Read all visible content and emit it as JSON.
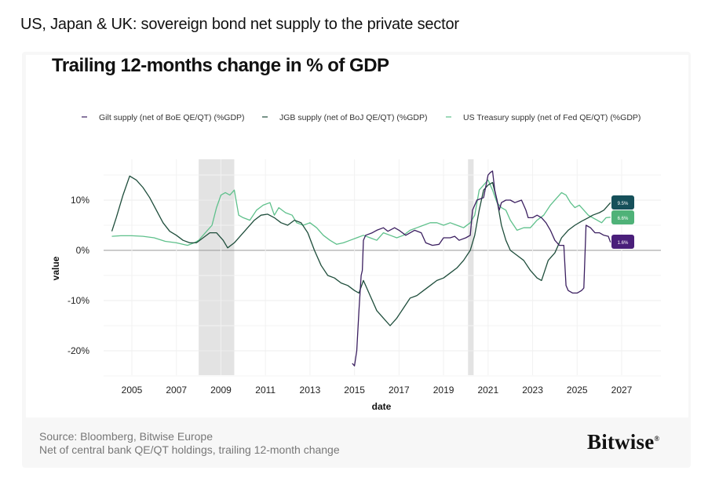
{
  "page_title": "US, Japan & UK: sovereign bond net supply to the private sector",
  "footer": {
    "source": "Source: Bloomberg, Bitwise Europe",
    "note": "Net of central bank QE/QT holdings, trailing 12-month change",
    "brand": "Bitwise",
    "brand_mark": "®"
  },
  "chart_data": {
    "type": "line",
    "title": "Trailing 12-months change in % of GDP",
    "xlabel": "date",
    "ylabel": "value",
    "xlim": [
      2004.0,
      2027.5
    ],
    "ylim": [
      -25,
      20
    ],
    "grid": true,
    "legend_position": "top",
    "y_ticks": [
      {
        "value": 10,
        "label": "10%"
      },
      {
        "value": 0,
        "label": "0%"
      },
      {
        "value": -10,
        "label": "-10%"
      },
      {
        "value": -20,
        "label": "-20%"
      }
    ],
    "x_ticks": [
      2005,
      2007,
      2009,
      2011,
      2013,
      2015,
      2017,
      2019,
      2021,
      2023,
      2025,
      2027
    ],
    "shaded_periods": [
      {
        "start": 2008.0,
        "end": 2009.6
      },
      {
        "start": 2020.1,
        "end": 2020.35
      }
    ],
    "series": [
      {
        "name": "Gilt supply (net of BoE QE/QT) (%GDP)",
        "color": "#3b1f60",
        "end_label": "1.6%",
        "points": [
          [
            14.9,
            -22.5
          ],
          [
            15.0,
            -23.0
          ],
          [
            15.1,
            -20.0
          ],
          [
            15.2,
            -12.0
          ],
          [
            15.3,
            -5.0
          ],
          [
            15.35,
            -4.0
          ],
          [
            15.4,
            2.0
          ],
          [
            15.5,
            3.0
          ],
          [
            15.8,
            3.5
          ],
          [
            16.0,
            4.0
          ],
          [
            16.3,
            4.5
          ],
          [
            16.5,
            3.8
          ],
          [
            16.8,
            4.5
          ],
          [
            17.0,
            4.0
          ],
          [
            17.3,
            3.0
          ],
          [
            17.7,
            4.0
          ],
          [
            18.0,
            3.5
          ],
          [
            18.2,
            1.5
          ],
          [
            18.5,
            1.0
          ],
          [
            18.8,
            1.2
          ],
          [
            19.0,
            2.5
          ],
          [
            19.3,
            2.5
          ],
          [
            19.5,
            2.8
          ],
          [
            19.7,
            2.0
          ],
          [
            20.0,
            2.5
          ],
          [
            20.2,
            3.0
          ],
          [
            20.3,
            8.0
          ],
          [
            20.5,
            10.0
          ],
          [
            20.8,
            10.5
          ],
          [
            21.0,
            15.0
          ],
          [
            21.1,
            15.5
          ],
          [
            21.2,
            15.8
          ],
          [
            21.3,
            12.0
          ],
          [
            21.5,
            8.0
          ],
          [
            21.6,
            9.5
          ],
          [
            21.8,
            10.0
          ],
          [
            22.0,
            10.0
          ],
          [
            22.2,
            9.5
          ],
          [
            22.5,
            10.0
          ],
          [
            22.7,
            8.0
          ],
          [
            22.8,
            6.5
          ],
          [
            23.0,
            6.5
          ],
          [
            23.2,
            7.0
          ],
          [
            23.4,
            6.5
          ],
          [
            23.6,
            5.5
          ],
          [
            23.8,
            4.0
          ],
          [
            24.0,
            2.0
          ],
          [
            24.2,
            1.0
          ],
          [
            24.4,
            1.0
          ],
          [
            24.5,
            -7.0
          ],
          [
            24.6,
            -8.0
          ],
          [
            24.8,
            -8.5
          ],
          [
            25.0,
            -8.5
          ],
          [
            25.2,
            -8.0
          ],
          [
            25.3,
            -7.5
          ],
          [
            25.4,
            5.0
          ],
          [
            25.6,
            4.5
          ],
          [
            25.8,
            3.5
          ],
          [
            26.0,
            3.5
          ],
          [
            26.2,
            3.0
          ],
          [
            26.4,
            2.8
          ],
          [
            26.5,
            1.6
          ]
        ]
      },
      {
        "name": "JGB supply (net of BoJ QE/QT) (%GDP)",
        "color": "#1e4d3b",
        "end_label": "9.5%",
        "points": [
          [
            4.1,
            3.8
          ],
          [
            4.3,
            6.5
          ],
          [
            4.6,
            11.0
          ],
          [
            4.9,
            14.8
          ],
          [
            5.2,
            14.0
          ],
          [
            5.5,
            12.5
          ],
          [
            5.8,
            10.5
          ],
          [
            6.1,
            8.0
          ],
          [
            6.4,
            5.5
          ],
          [
            6.7,
            3.8
          ],
          [
            7.0,
            3.0
          ],
          [
            7.3,
            2.0
          ],
          [
            7.6,
            1.5
          ],
          [
            7.9,
            1.5
          ],
          [
            8.2,
            2.5
          ],
          [
            8.5,
            3.5
          ],
          [
            8.8,
            3.5
          ],
          [
            9.1,
            2.0
          ],
          [
            9.3,
            0.5
          ],
          [
            9.6,
            1.5
          ],
          [
            9.9,
            3.0
          ],
          [
            10.2,
            4.5
          ],
          [
            10.5,
            6.0
          ],
          [
            10.8,
            7.0
          ],
          [
            11.1,
            7.2
          ],
          [
            11.4,
            6.5
          ],
          [
            11.7,
            5.5
          ],
          [
            12.0,
            5.0
          ],
          [
            12.3,
            6.0
          ],
          [
            12.6,
            5.5
          ],
          [
            12.9,
            3.5
          ],
          [
            13.2,
            0.0
          ],
          [
            13.5,
            -3.0
          ],
          [
            13.8,
            -5.0
          ],
          [
            14.1,
            -5.5
          ],
          [
            14.4,
            -6.5
          ],
          [
            14.7,
            -7.0
          ],
          [
            15.0,
            -8.0
          ],
          [
            15.2,
            -8.5
          ],
          [
            15.4,
            -6.0
          ],
          [
            15.7,
            -9.0
          ],
          [
            16.0,
            -12.0
          ],
          [
            16.3,
            -13.5
          ],
          [
            16.6,
            -15.0
          ],
          [
            16.9,
            -13.5
          ],
          [
            17.2,
            -11.5
          ],
          [
            17.5,
            -9.5
          ],
          [
            17.8,
            -9.0
          ],
          [
            18.1,
            -8.0
          ],
          [
            18.4,
            -7.0
          ],
          [
            18.7,
            -6.0
          ],
          [
            19.0,
            -5.5
          ],
          [
            19.3,
            -4.5
          ],
          [
            19.6,
            -3.5
          ],
          [
            19.9,
            -2.0
          ],
          [
            20.2,
            0.0
          ],
          [
            20.4,
            3.0
          ],
          [
            20.6,
            8.0
          ],
          [
            20.8,
            12.0
          ],
          [
            21.0,
            13.0
          ],
          [
            21.2,
            13.5
          ],
          [
            21.4,
            10.0
          ],
          [
            21.6,
            5.0
          ],
          [
            21.8,
            2.0
          ],
          [
            22.0,
            0.0
          ],
          [
            22.3,
            -1.0
          ],
          [
            22.6,
            -2.0
          ],
          [
            22.9,
            -4.0
          ],
          [
            23.2,
            -5.5
          ],
          [
            23.4,
            -6.0
          ],
          [
            23.7,
            -2.0
          ],
          [
            24.0,
            -0.5
          ],
          [
            24.3,
            2.5
          ],
          [
            24.6,
            4.0
          ],
          [
            24.9,
            5.0
          ],
          [
            25.2,
            5.8
          ],
          [
            25.5,
            6.5
          ],
          [
            25.7,
            7.0
          ],
          [
            26.0,
            7.5
          ],
          [
            26.2,
            8.0
          ],
          [
            26.5,
            9.5
          ]
        ]
      },
      {
        "name": "US Treasury supply (net of Fed QE/QT) (%GDP)",
        "color": "#5ec08b",
        "end_label": "6.6%",
        "points": [
          [
            4.1,
            2.8
          ],
          [
            4.5,
            2.9
          ],
          [
            5.0,
            2.9
          ],
          [
            5.5,
            2.8
          ],
          [
            6.0,
            2.5
          ],
          [
            6.5,
            1.8
          ],
          [
            7.0,
            1.5
          ],
          [
            7.5,
            1.0
          ],
          [
            7.8,
            1.5
          ],
          [
            8.0,
            2.0
          ],
          [
            8.3,
            3.5
          ],
          [
            8.6,
            5.0
          ],
          [
            8.8,
            8.5
          ],
          [
            9.0,
            11.0
          ],
          [
            9.2,
            11.5
          ],
          [
            9.4,
            11.0
          ],
          [
            9.6,
            12.0
          ],
          [
            9.8,
            7.0
          ],
          [
            10.0,
            6.5
          ],
          [
            10.3,
            6.0
          ],
          [
            10.6,
            8.0
          ],
          [
            10.9,
            9.0
          ],
          [
            11.2,
            9.5
          ],
          [
            11.4,
            7.0
          ],
          [
            11.6,
            8.5
          ],
          [
            11.9,
            7.5
          ],
          [
            12.2,
            7.0
          ],
          [
            12.4,
            5.5
          ],
          [
            12.7,
            5.0
          ],
          [
            13.0,
            5.5
          ],
          [
            13.3,
            4.5
          ],
          [
            13.6,
            3.0
          ],
          [
            13.9,
            2.0
          ],
          [
            14.2,
            1.2
          ],
          [
            14.5,
            1.5
          ],
          [
            14.8,
            2.0
          ],
          [
            15.1,
            2.5
          ],
          [
            15.4,
            3.0
          ],
          [
            15.7,
            2.5
          ],
          [
            16.0,
            2.0
          ],
          [
            16.3,
            3.5
          ],
          [
            16.6,
            3.0
          ],
          [
            16.9,
            2.5
          ],
          [
            17.2,
            3.0
          ],
          [
            17.5,
            4.0
          ],
          [
            17.8,
            4.5
          ],
          [
            18.1,
            5.0
          ],
          [
            18.4,
            5.5
          ],
          [
            18.7,
            5.5
          ],
          [
            19.0,
            5.0
          ],
          [
            19.3,
            5.5
          ],
          [
            19.6,
            5.0
          ],
          [
            19.9,
            4.5
          ],
          [
            20.2,
            5.5
          ],
          [
            20.4,
            7.0
          ],
          [
            20.6,
            12.0
          ],
          [
            20.8,
            13.0
          ],
          [
            21.0,
            14.0
          ],
          [
            21.2,
            12.0
          ],
          [
            21.4,
            9.5
          ],
          [
            21.6,
            8.5
          ],
          [
            21.8,
            8.0
          ],
          [
            22.0,
            6.0
          ],
          [
            22.3,
            4.0
          ],
          [
            22.6,
            4.5
          ],
          [
            22.9,
            4.5
          ],
          [
            23.2,
            6.0
          ],
          [
            23.5,
            7.0
          ],
          [
            23.8,
            9.0
          ],
          [
            24.1,
            10.5
          ],
          [
            24.3,
            11.5
          ],
          [
            24.5,
            11.0
          ],
          [
            24.7,
            9.5
          ],
          [
            24.9,
            8.5
          ],
          [
            25.1,
            9.0
          ],
          [
            25.3,
            8.0
          ],
          [
            25.5,
            7.0
          ],
          [
            25.7,
            6.5
          ],
          [
            25.9,
            6.0
          ],
          [
            26.1,
            5.5
          ],
          [
            26.3,
            6.5
          ],
          [
            26.5,
            6.6
          ]
        ]
      }
    ]
  }
}
